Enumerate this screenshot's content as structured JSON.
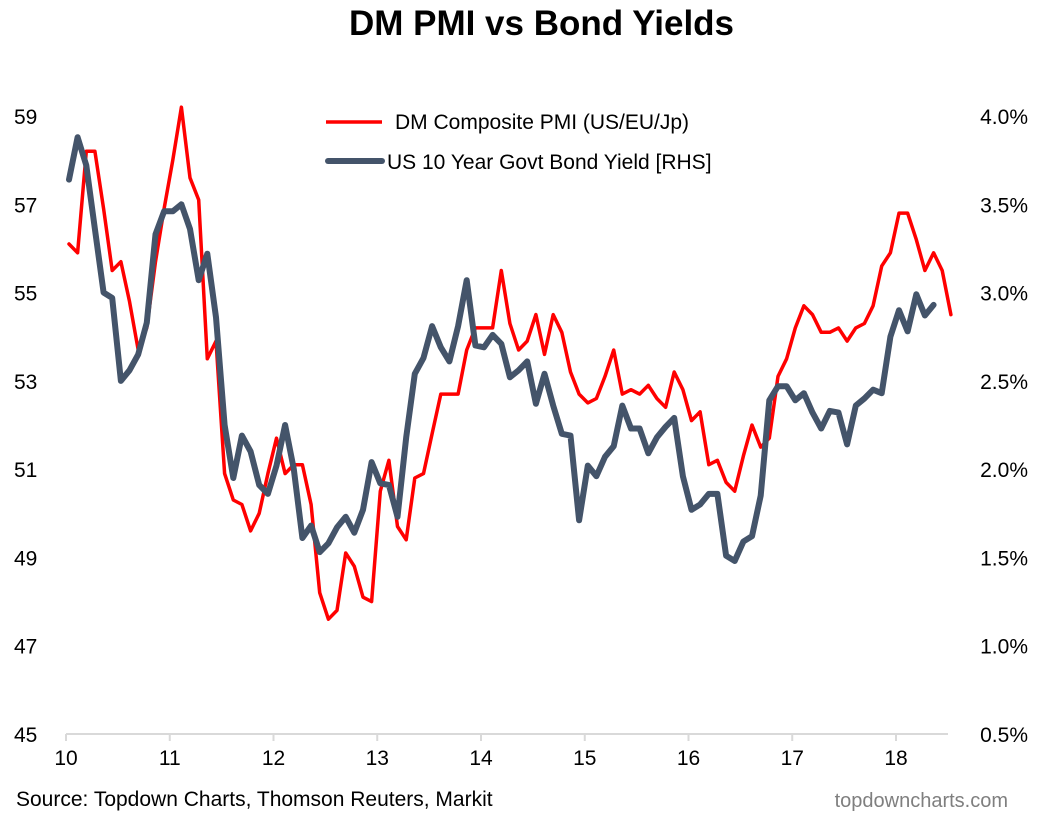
{
  "chart_data": {
    "type": "line",
    "title": "DM PMI vs Bond Yields",
    "xlabel": "",
    "ylabel": "",
    "y2label": "",
    "x_ticks": [
      "10",
      "11",
      "12",
      "13",
      "14",
      "15",
      "16",
      "17",
      "18"
    ],
    "x_start": "2010-01",
    "x_frequency": "monthly",
    "ylim": [
      45,
      59
    ],
    "y_ticks": [
      45,
      47,
      49,
      51,
      53,
      55,
      57,
      59
    ],
    "y2lim": [
      0.5,
      4.0
    ],
    "y2_ticks": [
      "0.5%",
      "1.0%",
      "1.5%",
      "2.0%",
      "2.5%",
      "3.0%",
      "3.5%",
      "4.0%"
    ],
    "grid": false,
    "legend_position": "top-center",
    "series": [
      {
        "name": "DM Composite PMI (US/EU/Jp)",
        "axis": "left",
        "color": "#ff0000",
        "values": [
          56.1,
          55.9,
          58.2,
          58.2,
          56.9,
          55.5,
          55.7,
          54.8,
          53.7,
          54.2,
          55.7,
          56.9,
          58.0,
          59.2,
          57.6,
          57.1,
          53.5,
          53.9,
          50.9,
          50.3,
          50.2,
          49.6,
          50.0,
          50.9,
          51.7,
          50.9,
          51.1,
          51.1,
          50.2,
          48.2,
          47.6,
          47.8,
          49.1,
          48.8,
          48.1,
          48.0,
          50.5,
          51.2,
          49.7,
          49.4,
          50.8,
          50.9,
          51.8,
          52.7,
          52.7,
          52.7,
          53.7,
          54.2,
          54.2,
          54.2,
          55.5,
          54.3,
          53.7,
          53.9,
          54.5,
          53.6,
          54.5,
          54.1,
          53.2,
          52.7,
          52.5,
          52.6,
          53.1,
          53.7,
          52.7,
          52.8,
          52.7,
          52.9,
          52.6,
          52.4,
          53.2,
          52.8,
          52.1,
          52.3,
          51.1,
          51.2,
          50.7,
          50.5,
          51.3,
          52.0,
          51.5,
          51.7,
          53.1,
          53.5,
          54.2,
          54.7,
          54.5,
          54.1,
          54.1,
          54.2,
          53.9,
          54.2,
          54.3,
          54.7,
          55.6,
          55.9,
          56.8,
          56.8,
          56.2,
          55.5,
          55.9,
          55.5,
          54.5
        ]
      },
      {
        "name": "US 10 Year Govt Bond Yield [RHS]",
        "axis": "right",
        "color": "#44546a",
        "values": [
          3.64,
          3.88,
          3.72,
          3.36,
          3.0,
          2.97,
          2.5,
          2.56,
          2.65,
          2.83,
          3.33,
          3.46,
          3.46,
          3.5,
          3.36,
          3.07,
          3.22,
          2.86,
          2.25,
          1.95,
          2.19,
          2.1,
          1.91,
          1.86,
          2.02,
          2.25,
          2.0,
          1.61,
          1.68,
          1.53,
          1.58,
          1.67,
          1.73,
          1.64,
          1.77,
          2.04,
          1.92,
          1.91,
          1.73,
          2.18,
          2.54,
          2.63,
          2.81,
          2.69,
          2.61,
          2.81,
          3.07,
          2.7,
          2.69,
          2.76,
          2.71,
          2.52,
          2.56,
          2.61,
          2.37,
          2.54,
          2.36,
          2.2,
          2.19,
          1.71,
          2.02,
          1.96,
          2.07,
          2.13,
          2.36,
          2.23,
          2.23,
          2.09,
          2.18,
          2.24,
          2.29,
          1.96,
          1.77,
          1.8,
          1.86,
          1.86,
          1.51,
          1.48,
          1.59,
          1.62,
          1.85,
          2.39,
          2.47,
          2.47,
          2.39,
          2.43,
          2.32,
          2.23,
          2.33,
          2.32,
          2.14,
          2.36,
          2.4,
          2.45,
          2.43,
          2.75,
          2.9,
          2.78,
          2.99,
          2.87,
          2.93
        ]
      }
    ],
    "source": "Source: Topdown Charts, Thomson Reuters, Markit",
    "watermark": "topdowncharts.com"
  }
}
